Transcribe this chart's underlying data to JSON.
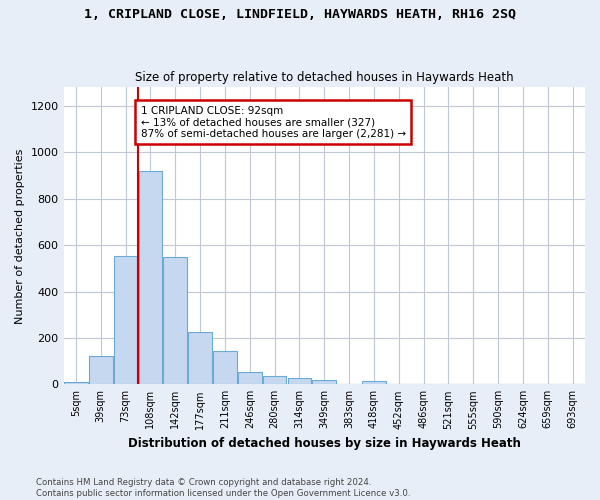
{
  "title": "1, CRIPLAND CLOSE, LINDFIELD, HAYWARDS HEATH, RH16 2SQ",
  "subtitle": "Size of property relative to detached houses in Haywards Heath",
  "xlabel": "Distribution of detached houses by size in Haywards Heath",
  "ylabel": "Number of detached properties",
  "categories": [
    "5sqm",
    "39sqm",
    "73sqm",
    "108sqm",
    "142sqm",
    "177sqm",
    "211sqm",
    "246sqm",
    "280sqm",
    "314sqm",
    "349sqm",
    "383sqm",
    "418sqm",
    "452sqm",
    "486sqm",
    "521sqm",
    "555sqm",
    "590sqm",
    "624sqm",
    "659sqm",
    "693sqm"
  ],
  "values": [
    10,
    120,
    555,
    920,
    548,
    225,
    143,
    53,
    35,
    28,
    20,
    0,
    13,
    0,
    0,
    0,
    0,
    0,
    0,
    0,
    0
  ],
  "bar_color": "#c5d8f0",
  "bar_edge_color": "#6aaad4",
  "annotation_line1": "1 CRIPLAND CLOSE: 92sqm",
  "annotation_line2": "← 13% of detached houses are smaller (327)",
  "annotation_line3": "87% of semi-detached houses are larger (2,281) →",
  "vline_color": "#cc0000",
  "annotation_box_edge_color": "#cc0000",
  "ylim": [
    0,
    1280
  ],
  "yticks": [
    0,
    200,
    400,
    600,
    800,
    1000,
    1200
  ],
  "footer": "Contains HM Land Registry data © Crown copyright and database right 2024.\nContains public sector information licensed under the Open Government Licence v3.0.",
  "bg_color": "#e8eef8",
  "plot_bg_color": "#ffffff",
  "grid_color": "#c0c8d8",
  "vline_x_index": 3
}
